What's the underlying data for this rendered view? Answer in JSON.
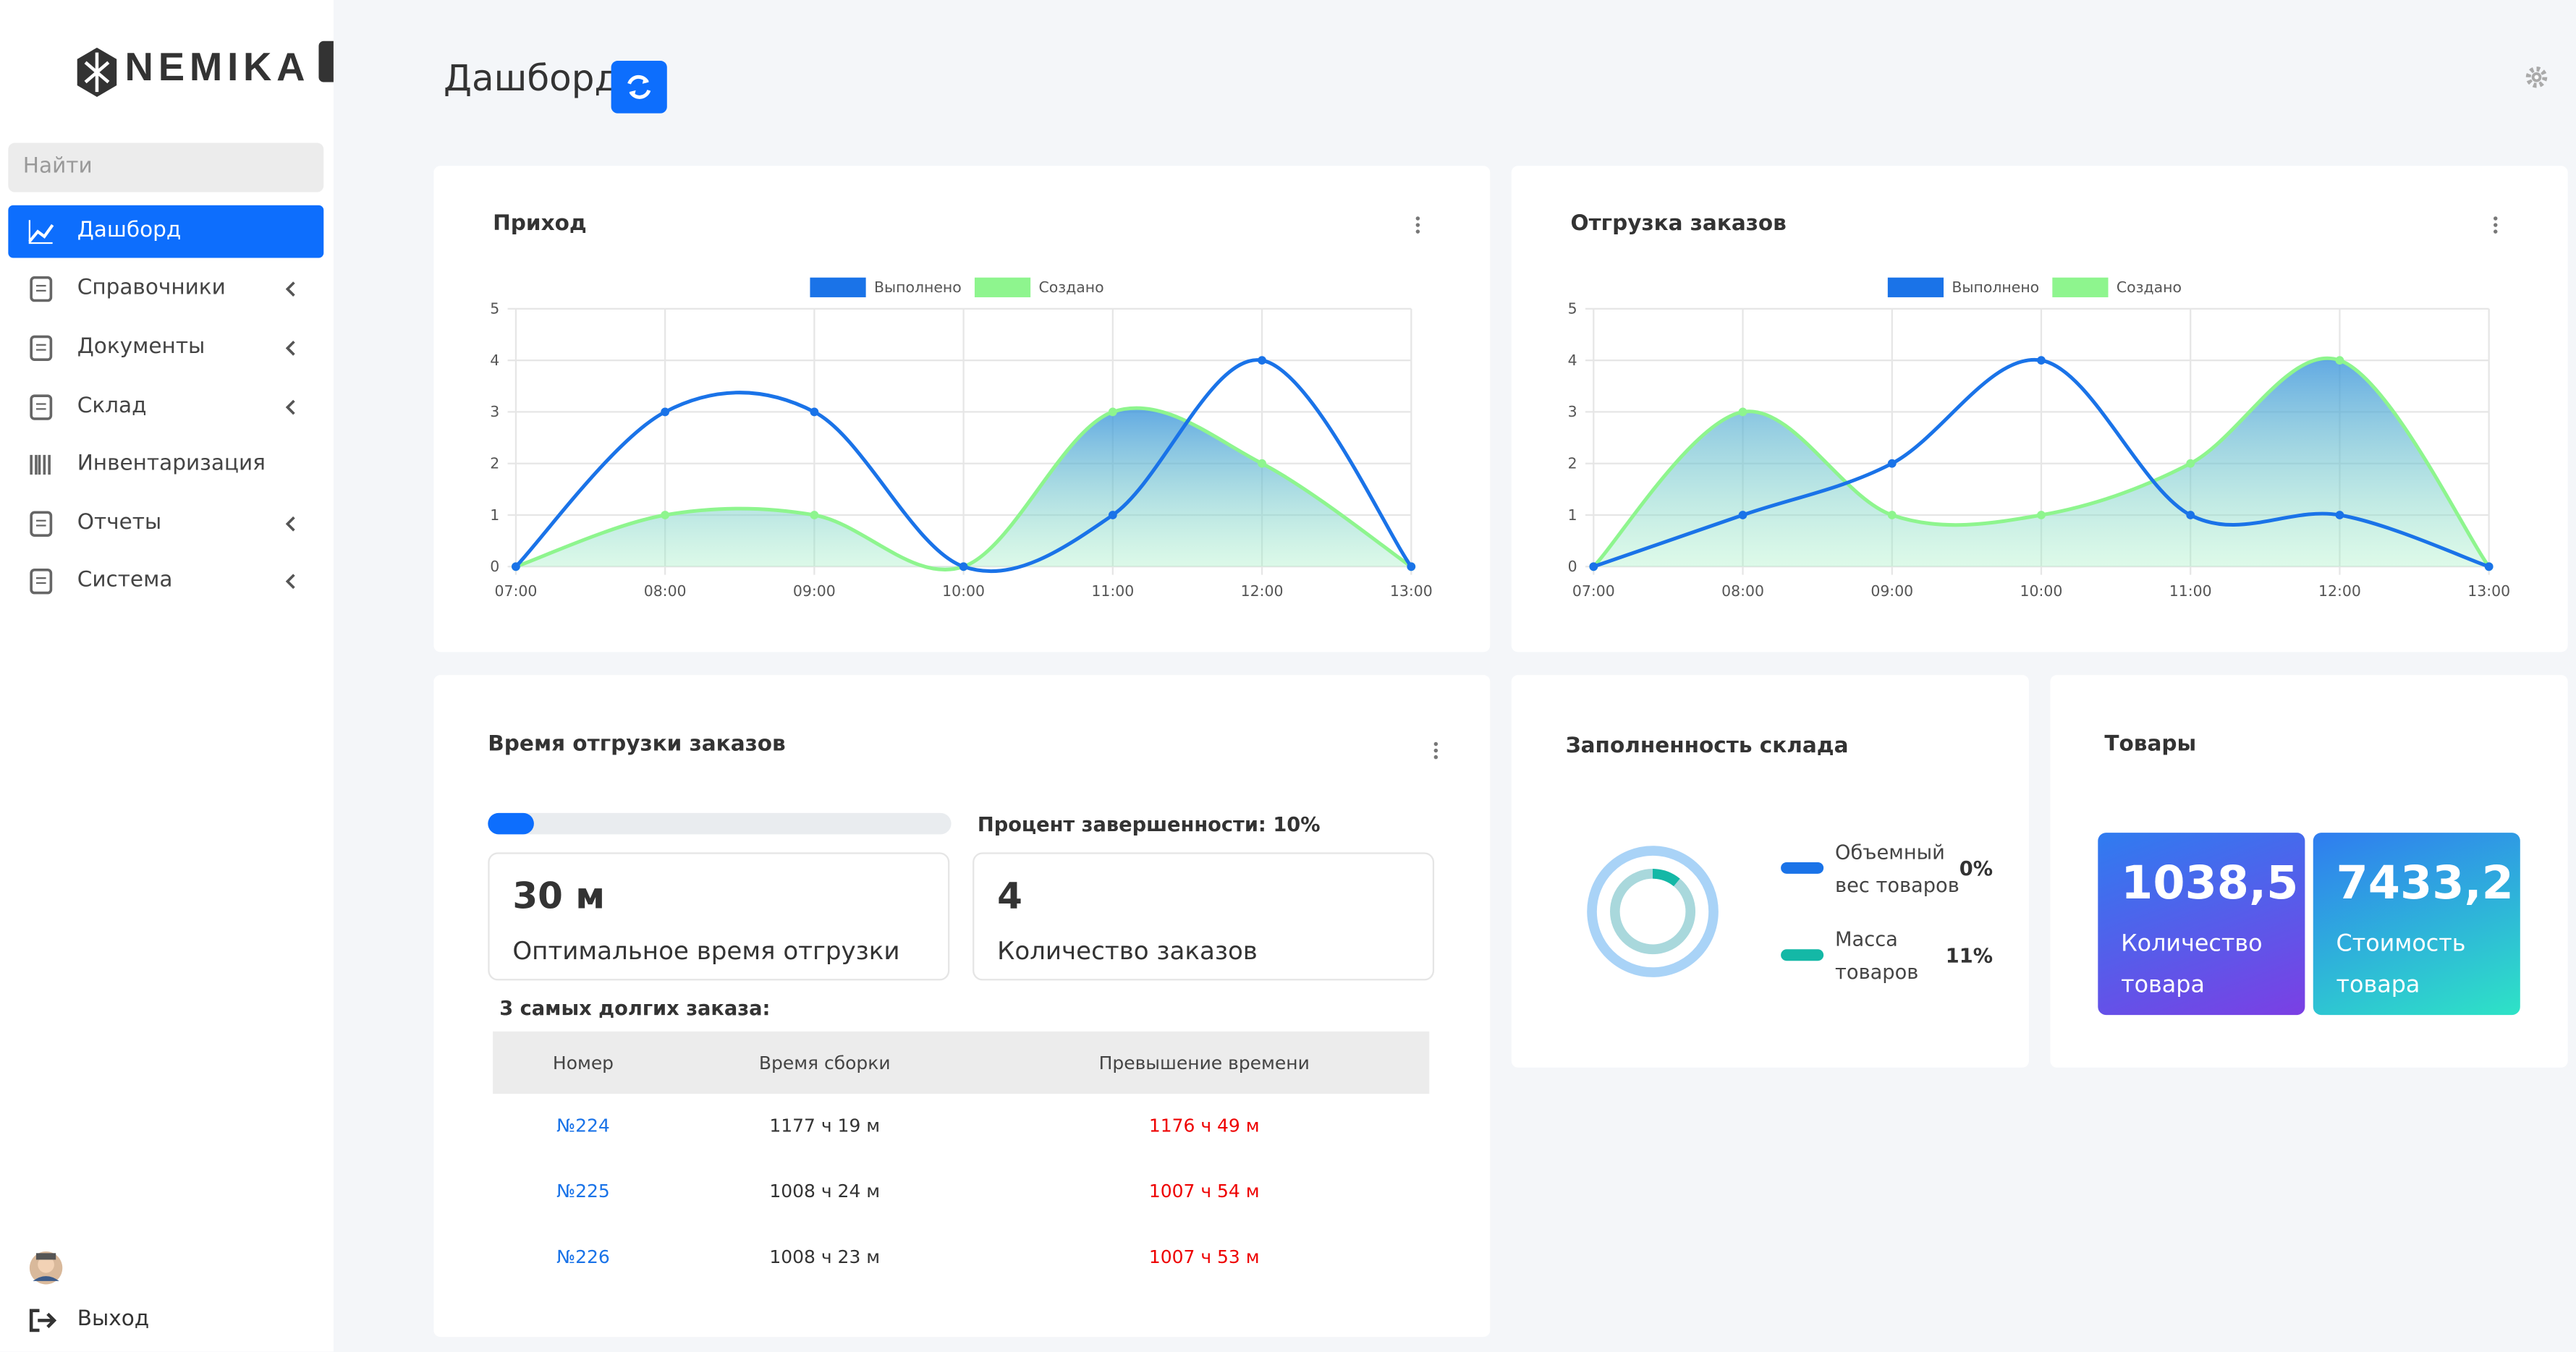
{
  "sidebar": {
    "brand": "NEMIKA",
    "search_placeholder": "Найти",
    "menu": [
      {
        "label": "Дашборд",
        "active": true,
        "submenu": false
      },
      {
        "label": "Справочники",
        "active": false,
        "submenu": true
      },
      {
        "label": "Документы",
        "active": false,
        "submenu": true
      },
      {
        "label": "Склад",
        "active": false,
        "submenu": true
      },
      {
        "label": "Инвентаризация",
        "active": false,
        "submenu": false
      },
      {
        "label": "Отчеты",
        "active": false,
        "submenu": true
      },
      {
        "label": "Система",
        "active": false,
        "submenu": true
      }
    ],
    "logout": "Выход"
  },
  "header": {
    "title": "Дашборд"
  },
  "chart_data": [
    {
      "type": "line",
      "title": "Приход",
      "categories": [
        "07:00",
        "08:00",
        "09:00",
        "10:00",
        "11:00",
        "12:00",
        "13:00"
      ],
      "series": [
        {
          "name": "Выполнено",
          "color": "#1a73e8",
          "fill": false,
          "values": [
            0,
            3,
            3,
            0,
            1,
            4,
            0
          ]
        },
        {
          "name": "Создано",
          "color": "#8ef58e",
          "fill": true,
          "values": [
            0,
            1,
            1,
            0,
            3,
            2,
            0
          ]
        }
      ],
      "ylim": [
        0,
        5
      ],
      "yticks": [
        0,
        1,
        2,
        3,
        4,
        5
      ],
      "grid": true
    },
    {
      "type": "line",
      "title": "Отгрузка заказов",
      "categories": [
        "07:00",
        "08:00",
        "09:00",
        "10:00",
        "11:00",
        "12:00",
        "13:00"
      ],
      "series": [
        {
          "name": "Выполнено",
          "color": "#1a73e8",
          "fill": false,
          "values": [
            0,
            1,
            2,
            4,
            1,
            1,
            0
          ]
        },
        {
          "name": "Создано",
          "color": "#8ef58e",
          "fill": true,
          "values": [
            0,
            3,
            1,
            1,
            2,
            4,
            0
          ]
        }
      ],
      "ylim": [
        0,
        5
      ],
      "yticks": [
        0,
        1,
        2,
        3,
        4,
        5
      ],
      "grid": true
    },
    {
      "type": "donut",
      "title": "Заполненность склада",
      "categories": [
        "Объемный вес товаров",
        "Масса товаров"
      ],
      "values": [
        0,
        11
      ],
      "value_labels": [
        "0%",
        "11%"
      ],
      "colors": [
        "#1a73e8",
        "#14b8a6"
      ],
      "track_colors": [
        "#a9d3f7",
        "#a9d8dc"
      ]
    }
  ],
  "shipping_time": {
    "title": "Время отгрузки заказов",
    "progress_value": 10,
    "progress_label": "Процент завершенности:",
    "progress_value_label": "10%",
    "stats": [
      {
        "value": "30 м",
        "label": "Оптимальное время отгрузки"
      },
      {
        "value": "4",
        "label": "Количество заказов"
      }
    ],
    "table": {
      "caption": "3 самых долгих заказа:",
      "columns": [
        "Номер",
        "Время сборки",
        "Превышение времени"
      ],
      "rows": [
        [
          "№224",
          "1177 ч 19 м",
          "1176 ч 49 м"
        ],
        [
          "№225",
          "1008 ч 24 м",
          "1007 ч 54 м"
        ],
        [
          "№226",
          "1008 ч 23 м",
          "1007 ч 53 м"
        ]
      ]
    }
  },
  "goods": {
    "title": "Товары",
    "cards": [
      {
        "value": "1038,5",
        "label": "Количество товара"
      },
      {
        "value": "7433,2",
        "label": "Стоимость товара"
      }
    ]
  }
}
